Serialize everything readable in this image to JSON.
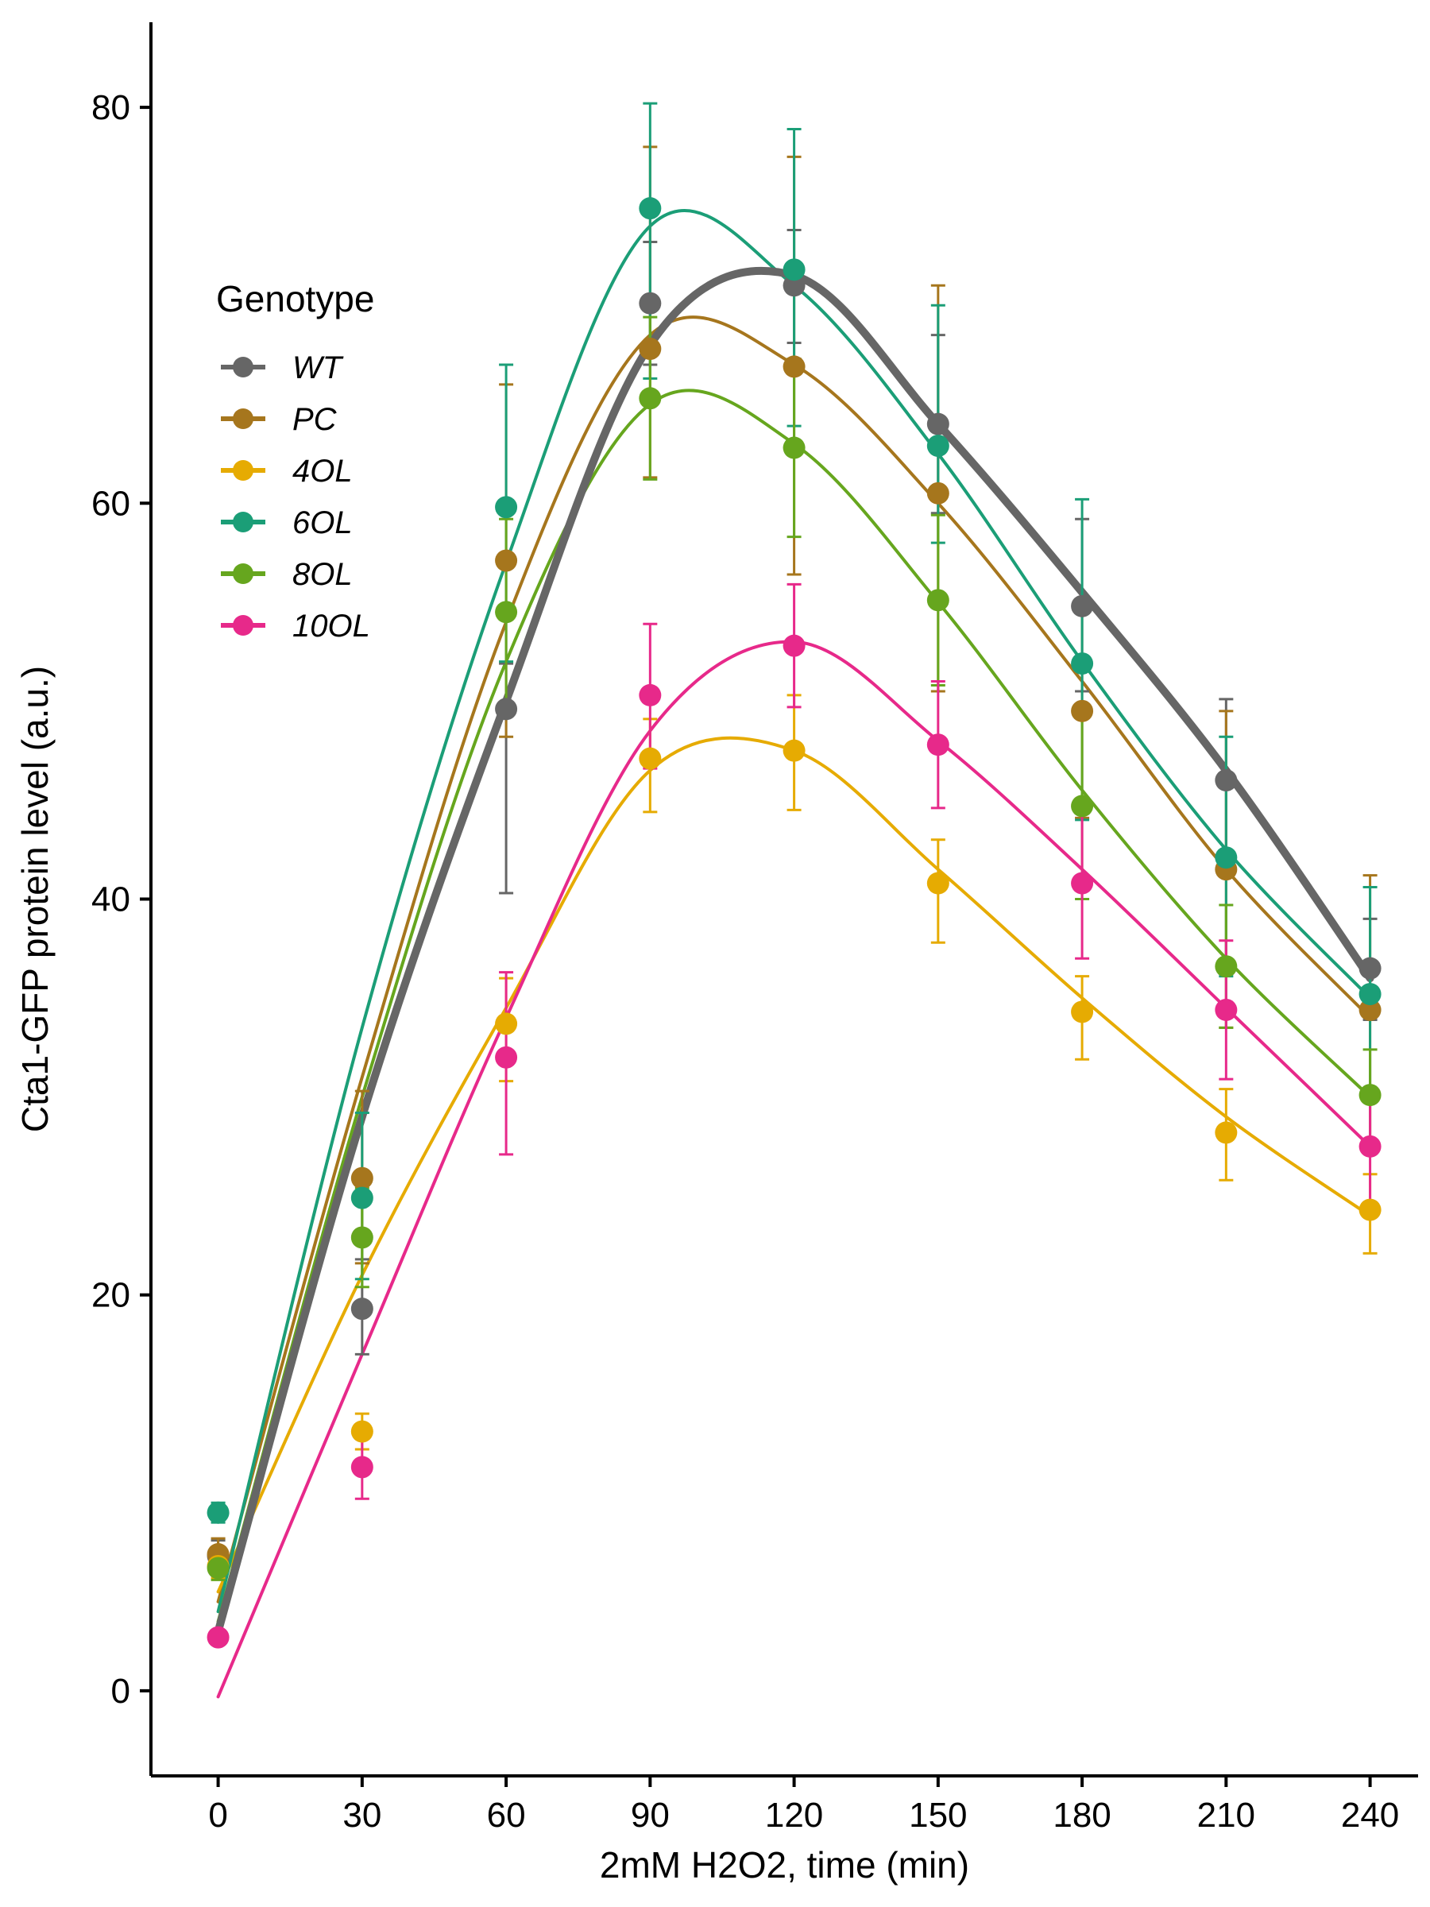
{
  "chart_data": {
    "type": "line",
    "xlabel": "2mM H2O2, time (min)",
    "ylabel": "Cta1-GFP protein level (a.u.)",
    "x": [
      0,
      30,
      60,
      90,
      120,
      150,
      180,
      210,
      240
    ],
    "x_ticks": [
      "0",
      "30",
      "60",
      "90",
      "120",
      "150",
      "180",
      "210",
      "240"
    ],
    "y_ticks": [
      "0",
      "20",
      "40",
      "60",
      "80"
    ],
    "xlim": [
      -14,
      250
    ],
    "ylim": [
      -4.3,
      84.3
    ],
    "grid": false,
    "legend": {
      "title": "Genotype",
      "position": "upper-left"
    },
    "series": [
      {
        "name": "WT",
        "color": "#666666",
        "values": [
          6.8,
          19.3,
          49.6,
          70.1,
          71.0,
          64.0,
          54.8,
          46.0,
          36.5
        ],
        "err_low": [
          6.0,
          17.0,
          40.3,
          67.0,
          68.1,
          59.5,
          50.5,
          41.5,
          33.9
        ],
        "err_high": [
          7.6,
          21.8,
          51.9,
          73.2,
          73.8,
          68.5,
          59.2,
          50.1,
          39.0
        ],
        "smooth": [
          3.0,
          29.0,
          50.0,
          68.0,
          71.5,
          64.0,
          55.5,
          46.5,
          36.0
        ],
        "line_width": 10
      },
      {
        "name": "PC",
        "color": "#A6761D",
        "values": [
          6.9,
          25.9,
          57.1,
          67.8,
          66.9,
          60.5,
          49.5,
          41.5,
          34.4
        ],
        "err_low": [
          6.1,
          21.6,
          48.2,
          61.3,
          56.4,
          50.5,
          44.1,
          33.5,
          27.6
        ],
        "err_high": [
          7.7,
          30.3,
          66.0,
          78.0,
          77.5,
          71.0,
          54.7,
          49.5,
          41.2
        ],
        "smooth": [
          4.5,
          31.0,
          54.0,
          68.5,
          67.0,
          60.0,
          51.0,
          41.5,
          34.0
        ],
        "line_width": 4
      },
      {
        "name": "4OL",
        "color": "#E6AB02",
        "values": [
          6.3,
          13.1,
          33.7,
          47.1,
          47.5,
          40.8,
          34.3,
          28.2,
          24.3
        ],
        "err_low": [
          5.7,
          12.2,
          30.8,
          44.4,
          44.5,
          37.8,
          31.9,
          25.8,
          22.1
        ],
        "err_high": [
          6.9,
          14.0,
          36.0,
          49.1,
          50.3,
          43.0,
          36.1,
          30.4,
          26.1
        ],
        "smooth": [
          5.0,
          21.0,
          34.5,
          46.5,
          47.5,
          41.5,
          35.0,
          29.0,
          24.0
        ],
        "line_width": 4
      },
      {
        "name": "6OL",
        "color": "#1B9E77",
        "values": [
          9.0,
          24.9,
          59.8,
          74.9,
          71.8,
          62.9,
          51.9,
          42.1,
          35.2
        ],
        "err_low": [
          8.5,
          20.8,
          52.0,
          66.3,
          63.9,
          58.0,
          44.0,
          36.1,
          30.0
        ],
        "err_high": [
          9.5,
          29.2,
          67.0,
          80.2,
          78.9,
          70.0,
          60.2,
          48.2,
          40.6
        ],
        "smooth": [
          4.0,
          33.5,
          57.0,
          74.0,
          71.0,
          62.5,
          52.0,
          42.5,
          35.0
        ],
        "line_width": 4
      },
      {
        "name": "8OL",
        "color": "#66A61E",
        "values": [
          6.2,
          22.9,
          54.5,
          65.3,
          62.8,
          55.1,
          44.7,
          36.6,
          30.1
        ],
        "err_low": [
          5.6,
          20.4,
          49.8,
          61.2,
          58.3,
          50.8,
          40.0,
          33.5,
          27.8
        ],
        "err_high": [
          6.8,
          25.4,
          59.2,
          69.4,
          67.3,
          59.4,
          49.4,
          39.7,
          32.4
        ],
        "smooth": [
          3.5,
          30.0,
          52.0,
          65.0,
          63.0,
          55.0,
          45.5,
          37.0,
          30.0
        ],
        "line_width": 4
      },
      {
        "name": "10OL",
        "color": "#E7298A",
        "values": [
          2.7,
          11.3,
          32.0,
          50.3,
          52.8,
          47.8,
          40.8,
          34.4,
          27.5
        ],
        "err_low": [
          2.4,
          9.7,
          27.1,
          46.6,
          49.7,
          44.6,
          37.0,
          30.9,
          24.6
        ],
        "err_high": [
          3.0,
          12.9,
          36.3,
          53.9,
          55.9,
          51.0,
          44.6,
          37.9,
          30.4
        ],
        "smooth": [
          -0.3,
          17.0,
          34.0,
          48.5,
          53.0,
          48.0,
          41.5,
          34.5,
          27.5
        ],
        "line_width": 4
      }
    ]
  }
}
